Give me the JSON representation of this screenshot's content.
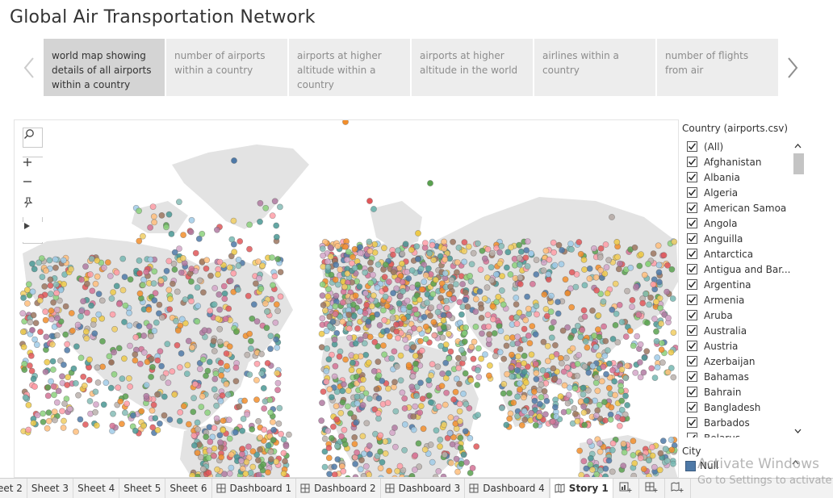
{
  "title": "Global Air Transportation Network",
  "story_points": [
    {
      "label": "world map showing details of all airports within a country",
      "active": true
    },
    {
      "label": "number of airports within a country",
      "active": false
    },
    {
      "label": "airports at higher altitude within a country",
      "active": false
    },
    {
      "label": "airports at higher altitude in the world",
      "active": false
    },
    {
      "label": "airlines within a country",
      "active": false
    },
    {
      "label": "number of flights from air",
      "active": false
    }
  ],
  "map_tools": [
    "search-icon",
    "zoom-in-icon",
    "zoom-out-icon",
    "pin-icon",
    "play-icon"
  ],
  "filter": {
    "title": "Country (airports.csv)",
    "items": [
      "(All)",
      "Afghanistan",
      "Albania",
      "Algeria",
      "American Samoa",
      "Angola",
      "Anguilla",
      "Antarctica",
      "Antigua and Bar...",
      "Argentina",
      "Armenia",
      "Aruba",
      "Australia",
      "Austria",
      "Azerbaijan",
      "Bahamas",
      "Bahrain",
      "Bangladesh",
      "Barbados",
      "Belarus"
    ],
    "all_checked": true
  },
  "legend": {
    "title": "City",
    "items": [
      {
        "label": "Null",
        "color": "#4e79a7"
      }
    ]
  },
  "tabs": [
    {
      "label": "eet 2",
      "icon": "",
      "active": false
    },
    {
      "label": "Sheet 3",
      "icon": "",
      "active": false
    },
    {
      "label": "Sheet 4",
      "icon": "",
      "active": false
    },
    {
      "label": "Sheet 5",
      "icon": "",
      "active": false
    },
    {
      "label": "Sheet 6",
      "icon": "",
      "active": false
    },
    {
      "label": "Dashboard 1",
      "icon": "dashboard-icon",
      "active": false
    },
    {
      "label": "Dashboard 2",
      "icon": "dashboard-icon",
      "active": false
    },
    {
      "label": "Dashboard 3",
      "icon": "dashboard-icon",
      "active": false
    },
    {
      "label": "Dashboard 4",
      "icon": "dashboard-icon",
      "active": false
    },
    {
      "label": "Story 1",
      "icon": "story-icon",
      "active": true
    }
  ],
  "new_tab_buttons": [
    "new-worksheet-icon",
    "new-dashboard-icon",
    "new-story-icon"
  ],
  "watermark": {
    "line1": "Activate Windows",
    "line2": "Go to Settings to activate"
  },
  "colors": {
    "marks": [
      "#4e79a7",
      "#f28e2b",
      "#e15759",
      "#76b7b2",
      "#59a14f",
      "#edc948",
      "#b07aa1",
      "#ff9da7",
      "#9c755f",
      "#bab0ac",
      "#8cd17d",
      "#f1ce63",
      "#d4a6c8",
      "#86bcb6",
      "#a0cbe8",
      "#ffbe7d",
      "#d37295",
      "#499894"
    ],
    "land": "#e3e3e3"
  }
}
